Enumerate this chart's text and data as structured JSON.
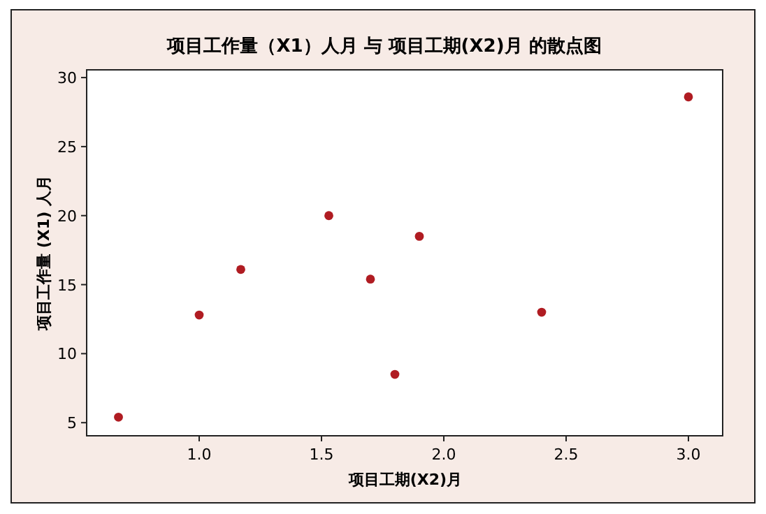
{
  "chart_data": {
    "type": "scatter",
    "title": "项目工作量（X1）人月 与 项目工期(X2)月 的散点图",
    "xlabel": "项目工期(X2)月",
    "ylabel": "项目工作量 (X1) 人月",
    "x": [
      0.67,
      1.0,
      1.17,
      1.53,
      1.7,
      1.8,
      1.9,
      2.4,
      3.0
    ],
    "series": [
      {
        "color": "#b01c22",
        "values": [
          5.4,
          12.8,
          16.1,
          20.0,
          15.4,
          8.5,
          18.5,
          13.0,
          28.6
        ]
      }
    ],
    "xlim": [
      0.54,
      3.14
    ],
    "ylim": [
      4.05,
      30.56
    ],
    "xticks": [
      {
        "value": 1.0,
        "label": "1.0"
      },
      {
        "value": 1.5,
        "label": "1.5"
      },
      {
        "value": 2.0,
        "label": "2.0"
      },
      {
        "value": 2.5,
        "label": "2.5"
      },
      {
        "value": 3.0,
        "label": "3.0"
      }
    ],
    "yticks": [
      5,
      10,
      15,
      20,
      25,
      30
    ],
    "marker": "circle",
    "grid": false
  }
}
